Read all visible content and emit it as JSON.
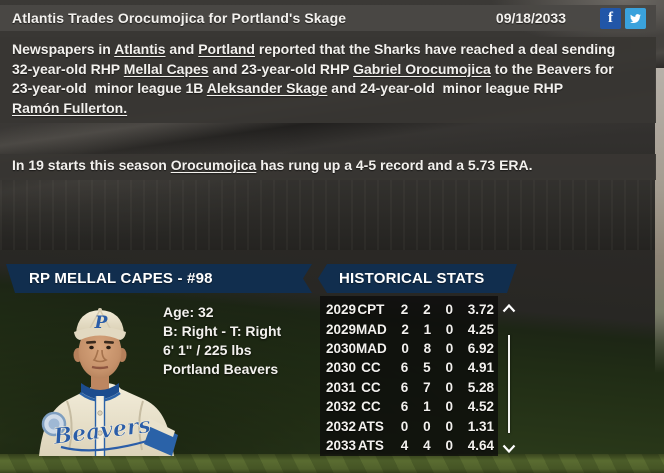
{
  "header": {
    "title": "Atlantis Trades Orocumojica for Portland's Skage",
    "date": "09/18/2033",
    "icons": {
      "facebook_glyph": "f",
      "facebook_name": "facebook-share-icon",
      "twitter_name": "twitter-share-icon"
    }
  },
  "article": {
    "paragraph1_segments": [
      {
        "text": "Newspapers in ",
        "link": false
      },
      {
        "text": "Atlantis",
        "link": true
      },
      {
        "text": " and ",
        "link": false
      },
      {
        "text": "Portland",
        "link": true
      },
      {
        "text": " reported that the Sharks have reached a deal sending\n32-year-old RHP ",
        "link": false
      },
      {
        "text": "Mellal Capes",
        "link": true
      },
      {
        "text": " and 23-year-old RHP ",
        "link": false
      },
      {
        "text": "Gabriel Orocumojica",
        "link": true
      },
      {
        "text": " to the Beavers for\n23-year-old  minor league 1B ",
        "link": false
      },
      {
        "text": "Aleksander Skage",
        "link": true
      },
      {
        "text": " and 24-year-old  minor league RHP\n",
        "link": false
      },
      {
        "text": "Ramón Fullerton.",
        "link": true
      }
    ],
    "paragraph2_segments": [
      {
        "text": "In 19 starts this season ",
        "link": false
      },
      {
        "text": "Orocumojica",
        "link": true
      },
      {
        "text": " has rung up a 4-5 record and a 5.73 ERA.",
        "link": false
      }
    ]
  },
  "player_panel": {
    "title": "RP MELLAL CAPES - #98",
    "age_line": "Age: 32",
    "bats_throws_line": "B: Right - T: Right",
    "size_line": "6' 1\" / 225 lbs",
    "team_line": "Portland Beavers",
    "portrait": {
      "cap_letter": "P",
      "jersey_script": "Beavers"
    }
  },
  "historical_stats": {
    "title": "HISTORICAL STATS",
    "rows": [
      {
        "year": "2029",
        "team": "CPT",
        "w": "2",
        "l": "2",
        "sv": "0",
        "era": "3.72"
      },
      {
        "year": "2029",
        "team": "MAD",
        "w": "2",
        "l": "1",
        "sv": "0",
        "era": "4.25"
      },
      {
        "year": "2030",
        "team": "MAD",
        "w": "0",
        "l": "8",
        "sv": "0",
        "era": "6.92"
      },
      {
        "year": "2030",
        "team": "CC",
        "w": "6",
        "l": "5",
        "sv": "0",
        "era": "4.91"
      },
      {
        "year": "2031",
        "team": "CC",
        "w": "6",
        "l": "7",
        "sv": "0",
        "era": "5.28"
      },
      {
        "year": "2032",
        "team": "CC",
        "w": "6",
        "l": "1",
        "sv": "0",
        "era": "4.52"
      },
      {
        "year": "2032",
        "team": "ATS",
        "w": "0",
        "l": "0",
        "sv": "0",
        "era": "1.31"
      },
      {
        "year": "2033",
        "team": "ATS",
        "w": "4",
        "l": "4",
        "sv": "0",
        "era": "4.64"
      }
    ],
    "scrollbar": {
      "up_icon": "chevron-up-icon",
      "down_icon": "chevron-down-icon"
    }
  },
  "colors": {
    "banner_navy": "#112e4e",
    "facebook_blue": "#2156a8",
    "twitter_blue": "#3aa2dc",
    "link_underline": "#f3f1ee"
  }
}
